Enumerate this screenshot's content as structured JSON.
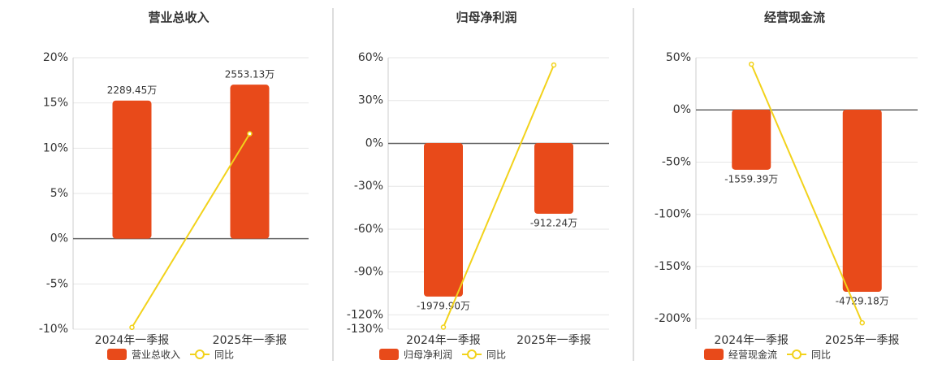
{
  "chart_data": [
    {
      "type": "combo",
      "title": "营业总收入",
      "categories": [
        "2024年一季报",
        "2025年一季报"
      ],
      "ylim": [
        -10,
        20
      ],
      "yticks": [
        {
          "value": 20,
          "label": "20%"
        },
        {
          "value": 15,
          "label": "15%"
        },
        {
          "value": 10,
          "label": "10%"
        },
        {
          "value": 5,
          "label": "5%"
        },
        {
          "value": 0,
          "label": "0%"
        },
        {
          "value": -5,
          "label": "-5%"
        },
        {
          "value": -10,
          "label": "-10%"
        }
      ],
      "y2lim": [
        -1500,
        3000
      ],
      "grid": true,
      "series": [
        {
          "name": "营业总收入",
          "type": "bar",
          "axis": "y2",
          "color": "#e84a1a",
          "values": [
            2289.45,
            2553.13
          ],
          "value_labels": [
            "2289.45万",
            "2553.13万"
          ]
        },
        {
          "name": "同比",
          "type": "line",
          "color": "#f2d21b",
          "values": [
            -9.8,
            11.6
          ]
        }
      ]
    },
    {
      "type": "combo",
      "title": "归母净利润",
      "categories": [
        "2024年一季报",
        "2025年一季报"
      ],
      "ylim": [
        -130,
        60
      ],
      "yticks": [
        {
          "value": 60,
          "label": "60%"
        },
        {
          "value": 30,
          "label": "30%"
        },
        {
          "value": 0,
          "label": "0%"
        },
        {
          "value": -30,
          "label": "-30%"
        },
        {
          "value": -60,
          "label": "-60%"
        },
        {
          "value": -90,
          "label": "-90%"
        },
        {
          "value": -120,
          "label": "-120%"
        },
        {
          "value": -130,
          "label": "-130%"
        }
      ],
      "y2lim": [
        -2400,
        1100
      ],
      "grid": true,
      "series": [
        {
          "name": "归母净利润",
          "type": "bar",
          "axis": "y2",
          "color": "#e84a1a",
          "values": [
            -1979.9,
            -912.24
          ],
          "value_labels": [
            "-1979.90万",
            "-912.24万"
          ]
        },
        {
          "name": "同比",
          "type": "line",
          "color": "#f2d21b",
          "values": [
            -128.6,
            54.9
          ]
        }
      ]
    },
    {
      "type": "combo",
      "title": "经营现金流",
      "categories": [
        "2024年一季报",
        "2025年一季报"
      ],
      "ylim": [
        -210,
        50
      ],
      "yticks": [
        {
          "value": 50,
          "label": "50%"
        },
        {
          "value": 0,
          "label": "0%"
        },
        {
          "value": -50,
          "label": "-50%"
        },
        {
          "value": -100,
          "label": "-100%"
        },
        {
          "value": -150,
          "label": "-150%"
        },
        {
          "value": -200,
          "label": "-200%"
        }
      ],
      "y2lim": [
        -5700,
        1350
      ],
      "grid": true,
      "series": [
        {
          "name": "经营现金流",
          "type": "bar",
          "axis": "y2",
          "color": "#e84a1a",
          "values": [
            -1559.39,
            -4729.18
          ],
          "value_labels": [
            "-1559.39万",
            "-4729.18万"
          ]
        },
        {
          "name": "同比",
          "type": "line",
          "color": "#f2d21b",
          "values": [
            43.8,
            -203.9
          ]
        }
      ]
    }
  ]
}
